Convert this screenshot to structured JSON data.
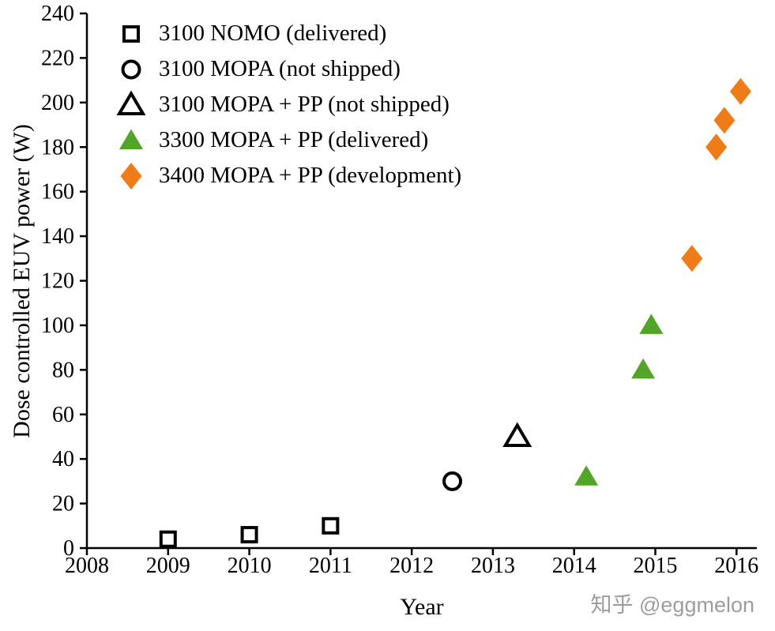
{
  "watermark": {
    "text": "知乎 @eggmelon"
  },
  "chart_data": {
    "type": "scatter",
    "title": "",
    "xlabel": "Year",
    "ylabel": "Dose controlled EUV power (W)",
    "xlim": [
      2008,
      2016.25
    ],
    "ylim": [
      0,
      240
    ],
    "x_ticks": [
      2008,
      2009,
      2010,
      2011,
      2012,
      2013,
      2014,
      2015,
      2016
    ],
    "y_ticks": [
      0,
      20,
      40,
      60,
      80,
      100,
      120,
      140,
      160,
      180,
      200,
      220,
      240
    ],
    "grid": false,
    "legend_position": "top-left-inside",
    "series": [
      {
        "name": "3100 NOMO (delivered)",
        "marker": "square",
        "fill": "open",
        "color": "#000000",
        "points": [
          [
            2009.0,
            4
          ],
          [
            2010.0,
            6
          ],
          [
            2011.0,
            10
          ]
        ]
      },
      {
        "name": "3100 MOPA (not shipped)",
        "marker": "circle",
        "fill": "open",
        "color": "#000000",
        "points": [
          [
            2012.5,
            30
          ]
        ]
      },
      {
        "name": "3100 MOPA + PP (not shipped)",
        "marker": "triangle",
        "fill": "open",
        "color": "#000000",
        "points": [
          [
            2013.3,
            50
          ]
        ]
      },
      {
        "name": "3300 MOPA + PP (delivered)",
        "marker": "triangle",
        "fill": "solid",
        "color": "#53a527",
        "points": [
          [
            2014.15,
            32
          ],
          [
            2014.85,
            80
          ],
          [
            2014.95,
            100
          ]
        ]
      },
      {
        "name": "3400 MOPA + PP (development)",
        "marker": "diamond",
        "fill": "solid",
        "color": "#ef7c17",
        "points": [
          [
            2015.45,
            130
          ],
          [
            2015.75,
            180
          ],
          [
            2015.85,
            192
          ],
          [
            2016.05,
            205
          ]
        ]
      }
    ]
  }
}
